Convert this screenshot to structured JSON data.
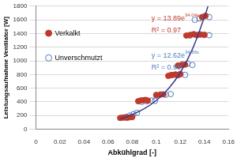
{
  "chart_data": {
    "type": "scatter",
    "x_label": "Abkühlgrad [-]",
    "y_label": "Leistungsaufnahme Ventilator [W]",
    "xlim": [
      0,
      0.16
    ],
    "xticks": [
      0,
      0.02,
      0.04,
      0.06,
      0.08,
      0.1,
      0.12,
      0.14,
      0.16
    ],
    "ylim": [
      0,
      1800
    ],
    "yticks": [
      0,
      200,
      400,
      600,
      800,
      1000,
      1200,
      1400,
      1600,
      1800
    ],
    "grid": true,
    "legend": "upper left",
    "series": [
      {
        "name": "Verkalkt",
        "color": "#c0392b",
        "marker": "filled",
        "x": [
          0.07,
          0.072,
          0.074,
          0.076,
          0.078,
          0.08,
          0.085,
          0.087,
          0.089,
          0.091,
          0.093,
          0.1,
          0.103,
          0.106,
          0.11,
          0.112,
          0.114,
          0.116,
          0.118,
          0.12,
          0.118,
          0.121,
          0.124,
          0.125,
          0.128,
          0.131,
          0.134,
          0.137,
          0.14,
          0.138,
          0.141
        ],
        "values": [
          165,
          170,
          172,
          168,
          175,
          178,
          410,
          420,
          425,
          430,
          420,
          500,
          505,
          510,
          780,
          790,
          795,
          800,
          790,
          805,
          930,
          940,
          945,
          1370,
          1380,
          1390,
          1375,
          1385,
          1380,
          1640,
          1660
        ]
      },
      {
        "name": "Unverschmutzt",
        "color": "#4a7ebb",
        "marker": "open",
        "x": [
          0.075,
          0.078,
          0.081,
          0.084,
          0.088,
          0.092,
          0.096,
          0.099,
          0.1,
          0.104,
          0.108,
          0.112,
          0.112,
          0.116,
          0.12,
          0.124,
          0.118,
          0.122,
          0.126,
          0.13,
          0.128,
          0.132,
          0.136,
          0.14,
          0.144,
          0.132,
          0.136,
          0.14,
          0.144
        ],
        "values": [
          180,
          200,
          220,
          240,
          400,
          410,
          420,
          415,
          500,
          510,
          505,
          515,
          790,
          800,
          810,
          795,
          930,
          950,
          960,
          940,
          1370,
          1385,
          1390,
          1380,
          1375,
          1600,
          1620,
          1650,
          1640
        ]
      },
      {
        "type": "line",
        "color": "#3b3b8f",
        "marker": "none",
        "line_style": "solid",
        "x": [
          0.07,
          0.08,
          0.09,
          0.1,
          0.11,
          0.12,
          0.13,
          0.14,
          0.143
        ],
        "values": [
          150,
          215,
          300,
          420,
          590,
          830,
          1170,
          1640,
          1800
        ]
      }
    ],
    "annotations": [
      {
        "text": "y = 13.89e",
        "sup": "34.04x",
        "color": "#c0392b"
      },
      {
        "text": "R² = 0.97",
        "color": "#c0392b"
      },
      {
        "text": "y = 12.62e",
        "sup": "34.89x",
        "color": "#4a7ebb"
      },
      {
        "text": "R² = 0.96",
        "color": "#4a7ebb"
      }
    ]
  }
}
